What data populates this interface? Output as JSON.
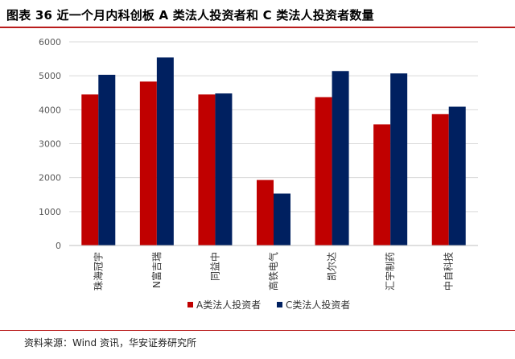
{
  "title": "图表 36 近一个月内科创板 A 类法人投资者和 C 类法人投资者数量",
  "source": "资料来源：Wind 资讯，华安证券研究所",
  "colors": {
    "seriesA": "#c00000",
    "seriesC": "#002060",
    "accent_rule": "#b91c1c"
  },
  "chart_data": {
    "type": "bar",
    "categories": [
      "珠海冠宇",
      "N富吉瑞",
      "同益中",
      "高铁电气",
      "凯尔达",
      "汇宇制药",
      "中自科技"
    ],
    "series": [
      {
        "name": "A类法人投资者",
        "values": [
          4450,
          4830,
          4450,
          1930,
          4370,
          3570,
          3870
        ]
      },
      {
        "name": "C类法人投资者",
        "values": [
          5030,
          5540,
          4480,
          1530,
          5140,
          5070,
          4090
        ]
      }
    ],
    "ylim": [
      0,
      6000
    ],
    "yticks": [
      "0",
      "1000",
      "2000",
      "3000",
      "4000",
      "5000",
      "6000"
    ],
    "grid": true,
    "legend_position": "bottom"
  }
}
